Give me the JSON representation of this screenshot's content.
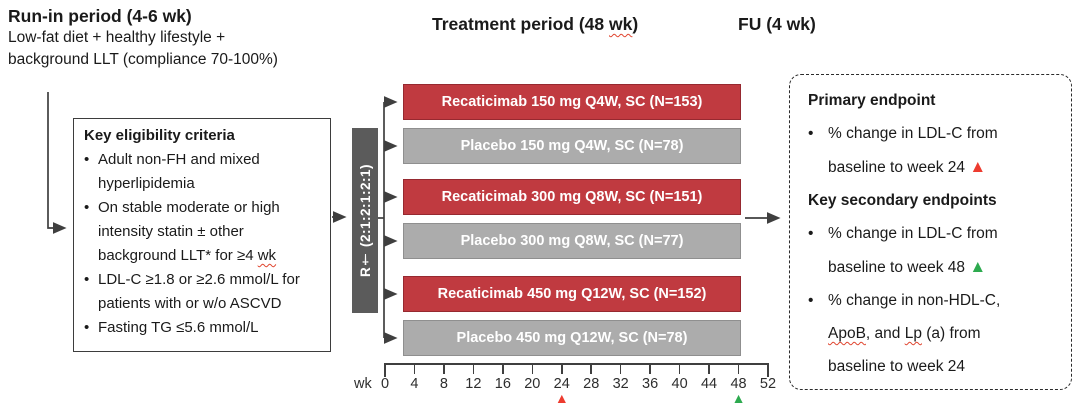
{
  "headers": {
    "runin_title": "Run-in period (4-6 wk)",
    "runin_sub1": "Low-fat diet + healthy lifestyle +",
    "runin_sub2": "background LLT (compliance 70-100%)",
    "treatment_title": [
      {
        "t": "Treatment period (48 "
      },
      {
        "t": "wk",
        "c": "sp"
      },
      {
        "t": ")"
      }
    ],
    "fu_title": "FU (4 wk)"
  },
  "eligibility": {
    "title": "Key eligibility criteria",
    "items": [
      [
        {
          "t": "Adult non-FH and mixed hyperlipidemia"
        }
      ],
      [
        {
          "t": "On stable moderate or high intensity statin ± other background LLT* for ≥4 "
        },
        {
          "t": "wk",
          "c": "sp"
        }
      ],
      [
        {
          "t": "LDL-C ≥1.8 or ≥2.6 mmol/L for patients with or w/o ASCVD"
        }
      ],
      [
        {
          "t": "Fasting TG ≤5.6 mmol/L"
        }
      ]
    ]
  },
  "randomization": {
    "label": "R† (2:1:2:1:2:1)"
  },
  "arms": [
    {
      "label": "Recaticimab 150 mg Q4W, SC (N=153)",
      "type": "drug"
    },
    {
      "label": "Placebo 150 mg Q4W, SC (N=78)",
      "type": "placebo"
    },
    {
      "label": "Recaticimab 300 mg Q8W, SC (N=151)",
      "type": "drug"
    },
    {
      "label": "Placebo 300 mg Q8W, SC (N=77)",
      "type": "placebo"
    },
    {
      "label": "Recaticimab 450 mg Q12W, SC (N=152)",
      "type": "drug"
    },
    {
      "label": "Placebo 450 mg Q12W, SC (N=78)",
      "type": "placebo"
    }
  ],
  "timeline": {
    "unit_label": "wk",
    "ticks": [
      "0",
      "4",
      "8",
      "12",
      "16",
      "20",
      "24",
      "28",
      "32",
      "36",
      "40",
      "44",
      "48",
      "52"
    ],
    "markers": [
      {
        "at": "24",
        "symbol": "▲",
        "color": "#ed3b2f"
      },
      {
        "at": "48",
        "symbol": "▲",
        "color": "#2daa4f"
      }
    ]
  },
  "endpoints": {
    "primary_title": "Primary endpoint",
    "primary_items": [
      [
        {
          "t": "% change in LDL-C from baseline to week 24 "
        },
        {
          "t": "▲",
          "c": "tri-red"
        }
      ]
    ],
    "secondary_title": "Key secondary endpoints",
    "secondary_items": [
      [
        {
          "t": "% change in LDL-C from baseline to week 48 "
        },
        {
          "t": "▲",
          "c": "tri-green"
        }
      ],
      [
        {
          "t": "% change in non-HDL-C, "
        },
        {
          "t": "ApoB",
          "c": "sp"
        },
        {
          "t": ", and "
        },
        {
          "t": "Lp",
          "c": "sp"
        },
        {
          "t": " (a) from baseline to week 24"
        }
      ]
    ]
  },
  "colors": {
    "drug_bar": "#c03a40",
    "placebo_bar": "#acacac",
    "randomization_bar": "#5b5b5b",
    "marker_primary": "#ed3b2f",
    "marker_secondary": "#2daa4f",
    "spellcheck_underline": "#e0442e"
  }
}
